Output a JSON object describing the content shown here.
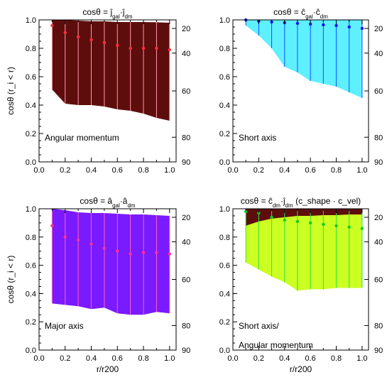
{
  "chart_data": [
    {
      "type": "area",
      "title_math": {
        "lhs": "cosθ = ",
        "terms": [
          {
            "base": "j",
            "sub": "gal"
          },
          {
            "base": "j",
            "sub": "dm"
          }
        ],
        "extra": ""
      },
      "annotation": [
        "Angular momentum"
      ],
      "xlim": [
        0,
        1.05
      ],
      "ylim": [
        0,
        1.0
      ],
      "x": [
        0.1,
        0.2,
        0.3,
        0.4,
        0.5,
        0.6,
        0.7,
        0.8,
        0.9,
        1.0
      ],
      "upper": [
        1.0,
        1.0,
        0.995,
        0.99,
        0.99,
        0.985,
        0.985,
        0.985,
        0.983,
        0.98
      ],
      "lower": [
        0.51,
        0.41,
        0.4,
        0.4,
        0.39,
        0.37,
        0.36,
        0.34,
        0.31,
        0.29
      ],
      "median": [
        0.96,
        0.91,
        0.88,
        0.86,
        0.84,
        0.82,
        0.8,
        0.8,
        0.8,
        0.79
      ],
      "fill_color": "#5e0d0d",
      "line_color": "#ff9aa8",
      "point_color": "#ff3040"
    },
    {
      "type": "area",
      "title_math": {
        "lhs": "cosθ = ",
        "terms": [
          {
            "base": "c",
            "sub": "gal"
          },
          {
            "base": "c",
            "sub": "dm"
          }
        ],
        "extra": ""
      },
      "annotation": [
        "Short axis"
      ],
      "xlim": [
        0,
        1.05
      ],
      "ylim": [
        0,
        1.0
      ],
      "x": [
        0.1,
        0.2,
        0.3,
        0.4,
        0.5,
        0.6,
        0.7,
        0.8,
        0.9,
        1.0
      ],
      "upper": [
        1.0,
        1.0,
        1.0,
        1.0,
        1.0,
        1.0,
        1.0,
        1.0,
        1.0,
        1.0
      ],
      "lower": [
        0.96,
        0.89,
        0.8,
        0.67,
        0.63,
        0.57,
        0.55,
        0.53,
        0.49,
        0.45
      ],
      "median": [
        1.0,
        0.99,
        0.985,
        0.98,
        0.975,
        0.97,
        0.965,
        0.96,
        0.95,
        0.94
      ],
      "fill_color": "#5ef0ff",
      "line_color": "#1050ff",
      "point_color": "#1010ff"
    },
    {
      "type": "area",
      "title_math": {
        "lhs": "cosθ = ",
        "terms": [
          {
            "base": "a",
            "sub": "gal"
          },
          {
            "base": "a",
            "sub": "dm"
          }
        ],
        "extra": ""
      },
      "annotation": [
        "Major axis"
      ],
      "xlim": [
        0,
        1.05
      ],
      "ylim": [
        0,
        1.0
      ],
      "x": [
        0.1,
        0.2,
        0.3,
        0.4,
        0.5,
        0.6,
        0.7,
        0.8,
        0.9,
        1.0
      ],
      "upper": [
        1.0,
        0.99,
        0.975,
        0.97,
        0.97,
        0.965,
        0.96,
        0.96,
        0.955,
        0.95
      ],
      "lower": [
        0.33,
        0.32,
        0.31,
        0.29,
        0.3,
        0.26,
        0.25,
        0.25,
        0.27,
        0.26
      ],
      "median": [
        0.88,
        0.8,
        0.78,
        0.75,
        0.72,
        0.7,
        0.68,
        0.69,
        0.69,
        0.68
      ],
      "fill_color": "#7a1aff",
      "line_color": "#ff60c0",
      "point_color": "#ff3090"
    },
    {
      "type": "area",
      "title_math": {
        "lhs": "cosθ = ",
        "terms": [
          {
            "base": "c",
            "sub": "dm"
          },
          {
            "base": "j",
            "sub": "dm"
          }
        ],
        "extra": "(c_shape · c_vel)"
      },
      "annotation": [
        "Short axis/",
        "Angular momentum"
      ],
      "xlim": [
        0,
        1.05
      ],
      "ylim": [
        0,
        1.0
      ],
      "x": [
        0.1,
        0.2,
        0.3,
        0.4,
        0.5,
        0.6,
        0.7,
        0.8,
        0.9,
        1.0
      ],
      "upper": [
        1.0,
        1.0,
        1.0,
        1.0,
        1.0,
        1.0,
        1.0,
        1.0,
        1.0,
        1.0
      ],
      "mid_band": [
        0.88,
        0.91,
        0.93,
        0.94,
        0.95,
        0.95,
        0.955,
        0.955,
        0.96,
        0.96
      ],
      "lower": [
        0.62,
        0.57,
        0.52,
        0.48,
        0.42,
        0.43,
        0.43,
        0.44,
        0.44,
        0.44
      ],
      "median": [
        0.98,
        0.97,
        0.94,
        0.92,
        0.91,
        0.9,
        0.89,
        0.88,
        0.87,
        0.86
      ],
      "fill_color": "#ccff22",
      "top_fill_color": "#5e0d0d",
      "line_color": "#30e040",
      "point_color": "#10d020"
    }
  ],
  "axes": {
    "ylabel": "cosθ (r_i < r)",
    "xlabel": "r/r200",
    "y_ticks": [
      "0.0",
      "0.2",
      "0.4",
      "0.6",
      "0.8",
      "1.0"
    ],
    "y_tick_values": [
      0.0,
      0.2,
      0.4,
      0.6,
      0.8,
      1.0
    ],
    "x_ticks": [
      "0.0",
      "0.2",
      "0.4",
      "0.6",
      "0.8",
      "1.0"
    ],
    "x_tick_values": [
      0.0,
      0.2,
      0.4,
      0.6,
      0.8,
      1.0
    ],
    "right_ticks": [
      "20",
      "40",
      "60",
      "80",
      "90"
    ],
    "right_tick_degrees": [
      20,
      40,
      60,
      80,
      90
    ]
  }
}
